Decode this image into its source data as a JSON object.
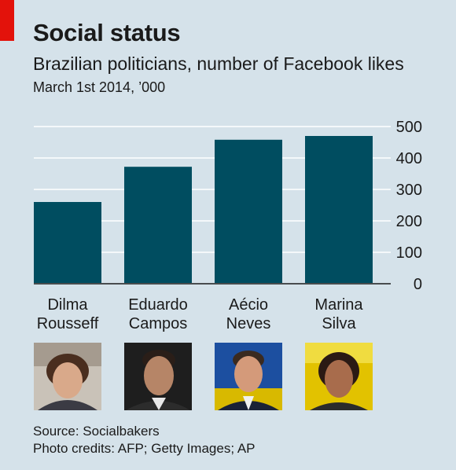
{
  "header": {
    "title": "Social status",
    "subtitle": "Brazilian politicians, number of Facebook likes",
    "subtitle2": "March 1st 2014, ’000"
  },
  "chart_data": {
    "type": "bar",
    "categories": [
      "Dilma Rousseff",
      "Eduardo Campos",
      "Aécio Neves",
      "Marina Silva"
    ],
    "category_lines": [
      [
        "Dilma",
        "Rousseff"
      ],
      [
        "Eduardo",
        "Campos"
      ],
      [
        "Aécio",
        "Neves"
      ],
      [
        "Marina",
        "Silva"
      ]
    ],
    "values": [
      260,
      372,
      458,
      470
    ],
    "ylim": [
      0,
      500
    ],
    "yticks": [
      0,
      100,
      200,
      300,
      400,
      500
    ],
    "yaxis_side": "right",
    "grid": true,
    "bar_color": "#004d60"
  },
  "footer": {
    "source": "Source: Socialbakers",
    "credits": "Photo credits: AFP; Getty Images; AP"
  },
  "colors": {
    "background": "#d5e2ea",
    "accent": "#e3120b",
    "bar": "#004d60"
  }
}
